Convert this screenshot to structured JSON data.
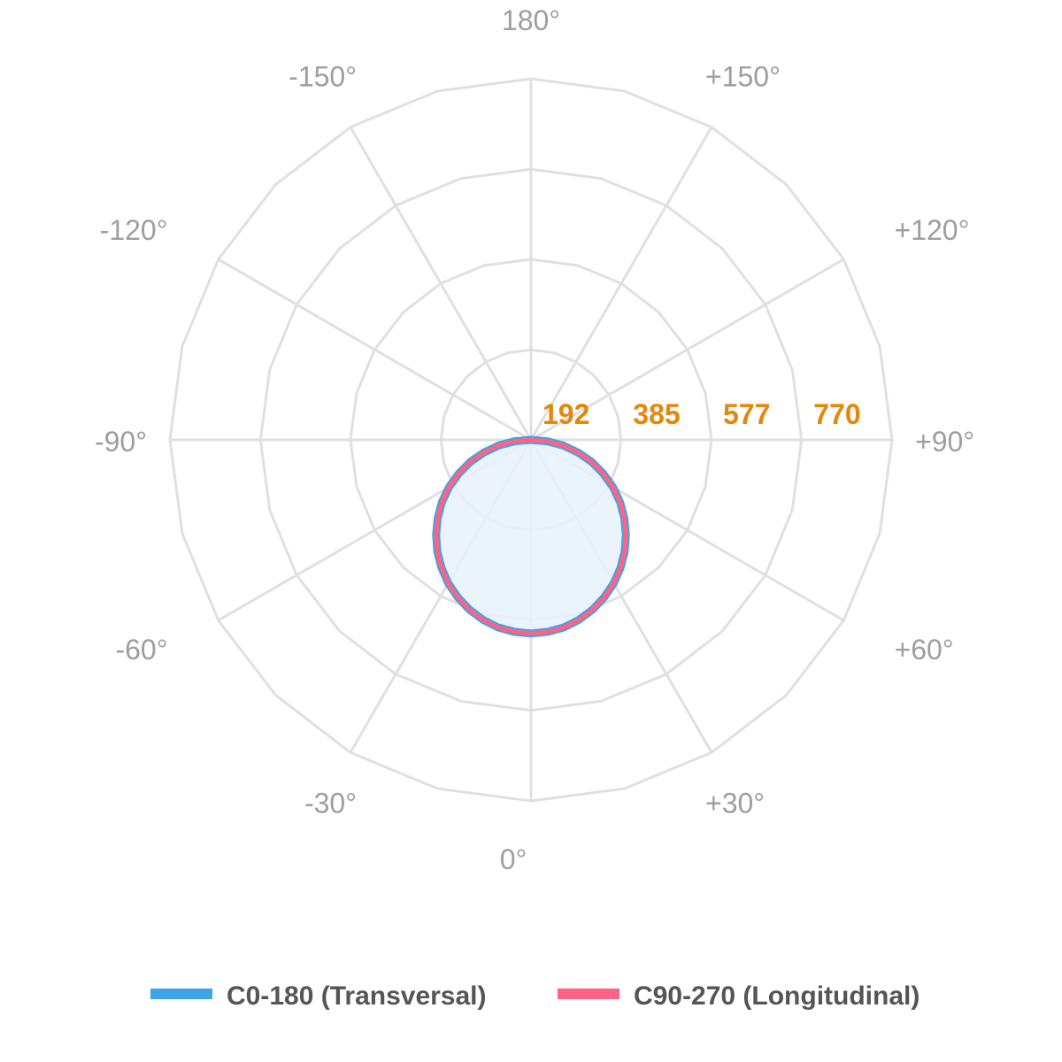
{
  "chart_data": {
    "type": "polar",
    "angle_ticks": [
      {
        "deg": 0,
        "label": "0°"
      },
      {
        "deg": 30,
        "label": "+30°"
      },
      {
        "deg": 60,
        "label": "+60°"
      },
      {
        "deg": 90,
        "label": "+90°"
      },
      {
        "deg": 120,
        "label": "+120°"
      },
      {
        "deg": 150,
        "label": "+150°"
      },
      {
        "deg": 180,
        "label": "180°"
      },
      {
        "deg": -150,
        "label": "-150°"
      },
      {
        "deg": -120,
        "label": "-120°"
      },
      {
        "deg": -90,
        "label": "-90°"
      },
      {
        "deg": -60,
        "label": "-60°"
      },
      {
        "deg": -30,
        "label": "-30°"
      }
    ],
    "radial_ticks": [
      192,
      385,
      577,
      770
    ],
    "radial_tick_labels": [
      "192",
      "385",
      "577",
      "770"
    ],
    "rlim": [
      0,
      770
    ],
    "grid": true,
    "legend_position": "bottom",
    "series": [
      {
        "name": "C0-180 (Transversal)",
        "color": "#3fa3e6",
        "angles": [
          -90,
          -85,
          -80,
          -75,
          -70,
          -65,
          -60,
          -55,
          -50,
          -45,
          -40,
          -35,
          -30,
          -25,
          -20,
          -15,
          -10,
          -5,
          0,
          5,
          10,
          15,
          20,
          25,
          30,
          35,
          40,
          45,
          50,
          55,
          60,
          65,
          70,
          75,
          80,
          85,
          90
        ],
        "values": [
          0,
          35,
          70,
          104,
          138,
          170,
          202,
          232,
          260,
          286,
          311,
          333,
          353,
          370,
          385,
          397,
          406,
          411,
          413,
          411,
          406,
          397,
          385,
          370,
          353,
          333,
          311,
          286,
          260,
          232,
          202,
          170,
          138,
          104,
          70,
          35,
          0
        ]
      },
      {
        "name": "C90-270 (Longitudinal)",
        "color": "#ff6384",
        "angles": [
          -90,
          -85,
          -80,
          -75,
          -70,
          -65,
          -60,
          -55,
          -50,
          -45,
          -40,
          -35,
          -30,
          -25,
          -20,
          -15,
          -10,
          -5,
          0,
          5,
          10,
          15,
          20,
          25,
          30,
          35,
          40,
          45,
          50,
          55,
          60,
          65,
          70,
          75,
          80,
          85,
          90
        ],
        "values": [
          0,
          35,
          70,
          104,
          138,
          170,
          202,
          232,
          260,
          286,
          311,
          333,
          353,
          370,
          385,
          397,
          406,
          411,
          413,
          411,
          406,
          397,
          385,
          370,
          353,
          333,
          311,
          286,
          260,
          232,
          202,
          170,
          138,
          104,
          70,
          35,
          0
        ]
      }
    ],
    "fill_color": "#e8f1fb"
  }
}
